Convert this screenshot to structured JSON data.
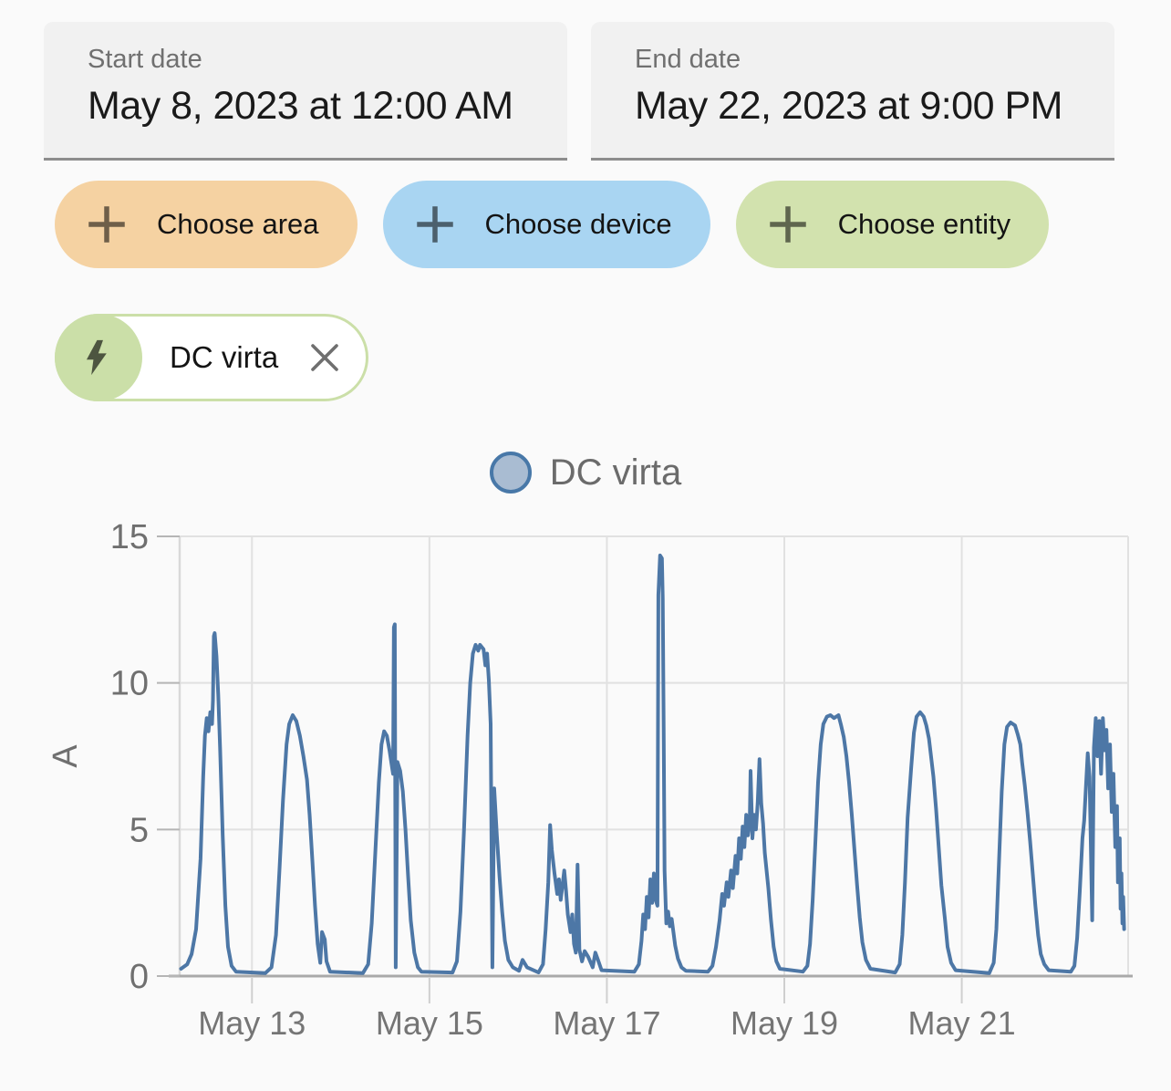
{
  "header": {
    "start_date": {
      "label": "Start date",
      "value": "May 8, 2023 at 12:00 AM"
    },
    "end_date": {
      "label": "End date",
      "value": "May 22, 2023 at 9:00 PM"
    }
  },
  "filters": {
    "choose_area": {
      "label": "Choose area",
      "color": "#f5d2a2",
      "icon": "plus-icon"
    },
    "choose_device": {
      "label": "Choose device",
      "color": "#a9d5f2",
      "icon": "plus-icon"
    },
    "choose_entity": {
      "label": "Choose entity",
      "color": "#d2e2ae",
      "icon": "plus-icon"
    }
  },
  "selected_entity": {
    "label": "DC virta",
    "accent_color": "#cbdfa8",
    "icon": "lightning-bolt-icon",
    "remove_icon": "close-icon"
  },
  "chart_data": {
    "type": "line",
    "title": "DC virta",
    "legend": [
      {
        "label": "DC virta",
        "marker_fill": "#a9bcd2",
        "marker_border": "#4878a8",
        "position": "top-center"
      }
    ],
    "ylabel": "A",
    "ylim": [
      0,
      15
    ],
    "yticks": [
      0,
      5,
      10,
      15
    ],
    "ytick_labels": [
      "0",
      "5",
      "10",
      "15"
    ],
    "x_unit": "day of May 2023 (fractional)",
    "xlim_days_may": [
      12.185,
      22.875
    ],
    "xtick_days_may": [
      13,
      15,
      17,
      19,
      21
    ],
    "xtick_labels": [
      "May 13",
      "May 15",
      "May 17",
      "May 19",
      "May 21"
    ],
    "grid": true,
    "line_color": "#4d77a6",
    "grid_color": "#e1e1e1",
    "axis_color": "#a9a9a9",
    "tick_label_color": "#6f6f6f",
    "series": [
      {
        "name": "DC virta",
        "unit": "A",
        "points": [
          [
            12.2,
            0.25
          ],
          [
            12.27,
            0.4
          ],
          [
            12.32,
            0.75
          ],
          [
            12.37,
            1.6
          ],
          [
            12.42,
            4.0
          ],
          [
            12.45,
            6.8
          ],
          [
            12.47,
            8.2
          ],
          [
            12.49,
            8.8
          ],
          [
            12.51,
            8.35
          ],
          [
            12.53,
            9.0
          ],
          [
            12.55,
            8.6
          ],
          [
            12.56,
            9.4
          ],
          [
            12.57,
            11.6
          ],
          [
            12.58,
            11.7
          ],
          [
            12.6,
            10.9
          ],
          [
            12.62,
            9.6
          ],
          [
            12.64,
            7.8
          ],
          [
            12.67,
            4.8
          ],
          [
            12.7,
            2.4
          ],
          [
            12.73,
            1.0
          ],
          [
            12.77,
            0.35
          ],
          [
            12.82,
            0.15
          ],
          [
            13.15,
            0.1
          ],
          [
            13.22,
            0.3
          ],
          [
            13.27,
            1.4
          ],
          [
            13.31,
            3.6
          ],
          [
            13.35,
            6.0
          ],
          [
            13.39,
            7.9
          ],
          [
            13.42,
            8.6
          ],
          [
            13.46,
            8.9
          ],
          [
            13.5,
            8.7
          ],
          [
            13.54,
            8.2
          ],
          [
            13.58,
            7.5
          ],
          [
            13.62,
            6.7
          ],
          [
            13.65,
            5.5
          ],
          [
            13.68,
            4.0
          ],
          [
            13.71,
            2.4
          ],
          [
            13.74,
            1.1
          ],
          [
            13.77,
            0.45
          ],
          [
            13.79,
            1.5
          ],
          [
            13.82,
            1.25
          ],
          [
            13.84,
            0.5
          ],
          [
            13.88,
            0.15
          ],
          [
            14.25,
            0.1
          ],
          [
            14.31,
            0.4
          ],
          [
            14.35,
            1.8
          ],
          [
            14.39,
            4.2
          ],
          [
            14.43,
            6.6
          ],
          [
            14.46,
            7.9
          ],
          [
            14.49,
            8.35
          ],
          [
            14.52,
            8.2
          ],
          [
            14.55,
            7.7
          ],
          [
            14.58,
            7.1
          ],
          [
            14.59,
            6.9
          ],
          [
            14.6,
            11.9
          ],
          [
            14.61,
            12.0
          ],
          [
            14.62,
            0.3
          ],
          [
            14.64,
            7.3
          ],
          [
            14.67,
            7.0
          ],
          [
            14.7,
            6.3
          ],
          [
            14.73,
            5.0
          ],
          [
            14.76,
            3.4
          ],
          [
            14.79,
            1.9
          ],
          [
            14.83,
            0.8
          ],
          [
            14.87,
            0.3
          ],
          [
            14.91,
            0.15
          ],
          [
            15.26,
            0.12
          ],
          [
            15.31,
            0.5
          ],
          [
            15.35,
            2.2
          ],
          [
            15.39,
            5.0
          ],
          [
            15.43,
            8.2
          ],
          [
            15.46,
            10.0
          ],
          [
            15.49,
            11.0
          ],
          [
            15.52,
            11.3
          ],
          [
            15.55,
            11.1
          ],
          [
            15.57,
            11.3
          ],
          [
            15.61,
            11.15
          ],
          [
            15.63,
            10.6
          ],
          [
            15.65,
            11.0
          ],
          [
            15.67,
            10.1
          ],
          [
            15.69,
            8.6
          ],
          [
            15.71,
            0.3
          ],
          [
            15.73,
            6.4
          ],
          [
            15.76,
            4.8
          ],
          [
            15.79,
            3.4
          ],
          [
            15.82,
            2.2
          ],
          [
            15.85,
            1.2
          ],
          [
            15.89,
            0.55
          ],
          [
            15.94,
            0.3
          ],
          [
            16.01,
            0.18
          ],
          [
            16.05,
            0.55
          ],
          [
            16.1,
            0.3
          ],
          [
            16.23,
            0.12
          ],
          [
            16.28,
            0.4
          ],
          [
            16.31,
            1.6
          ],
          [
            16.34,
            3.2
          ],
          [
            16.36,
            5.15
          ],
          [
            16.38,
            4.3
          ],
          [
            16.41,
            3.5
          ],
          [
            16.44,
            2.8
          ],
          [
            16.46,
            3.3
          ],
          [
            16.48,
            2.6
          ],
          [
            16.5,
            3.1
          ],
          [
            16.52,
            3.6
          ],
          [
            16.54,
            2.9
          ],
          [
            16.56,
            2.1
          ],
          [
            16.59,
            1.5
          ],
          [
            16.61,
            2.1
          ],
          [
            16.63,
            1.1
          ],
          [
            16.65,
            0.8
          ],
          [
            16.67,
            3.8
          ],
          [
            16.69,
            0.9
          ],
          [
            16.72,
            0.5
          ],
          [
            16.75,
            0.85
          ],
          [
            16.79,
            0.65
          ],
          [
            16.84,
            0.3
          ],
          [
            16.87,
            0.8
          ],
          [
            16.9,
            0.55
          ],
          [
            16.94,
            0.2
          ],
          [
            17.31,
            0.15
          ],
          [
            17.36,
            0.4
          ],
          [
            17.39,
            1.2
          ],
          [
            17.41,
            2.1
          ],
          [
            17.43,
            1.6
          ],
          [
            17.45,
            2.7
          ],
          [
            17.47,
            2.0
          ],
          [
            17.49,
            3.3
          ],
          [
            17.51,
            2.5
          ],
          [
            17.53,
            3.5
          ],
          [
            17.55,
            2.6
          ],
          [
            17.57,
            2.4
          ],
          [
            17.58,
            13.0
          ],
          [
            17.6,
            14.35
          ],
          [
            17.62,
            14.25
          ],
          [
            17.63,
            12.9
          ],
          [
            17.64,
            8.5
          ],
          [
            17.65,
            3.6
          ],
          [
            17.67,
            1.8
          ],
          [
            17.69,
            2.2
          ],
          [
            17.71,
            1.7
          ],
          [
            17.73,
            1.95
          ],
          [
            17.75,
            1.5
          ],
          [
            17.77,
            1.05
          ],
          [
            17.8,
            0.6
          ],
          [
            17.84,
            0.3
          ],
          [
            17.89,
            0.18
          ],
          [
            18.14,
            0.15
          ],
          [
            18.19,
            0.35
          ],
          [
            18.23,
            1.0
          ],
          [
            18.27,
            1.9
          ],
          [
            18.3,
            2.8
          ],
          [
            18.32,
            2.4
          ],
          [
            18.35,
            3.2
          ],
          [
            18.37,
            2.7
          ],
          [
            18.4,
            3.6
          ],
          [
            18.42,
            3.0
          ],
          [
            18.45,
            4.1
          ],
          [
            18.47,
            3.5
          ],
          [
            18.49,
            4.7
          ],
          [
            18.51,
            4.0
          ],
          [
            18.53,
            5.1
          ],
          [
            18.55,
            4.4
          ],
          [
            18.57,
            5.5
          ],
          [
            18.59,
            4.8
          ],
          [
            18.61,
            5.3
          ],
          [
            18.62,
            7.0
          ],
          [
            18.64,
            4.7
          ],
          [
            18.66,
            5.5
          ],
          [
            18.68,
            5.0
          ],
          [
            18.7,
            5.9
          ],
          [
            18.72,
            7.4
          ],
          [
            18.74,
            5.9
          ],
          [
            18.76,
            5.2
          ],
          [
            18.78,
            4.2
          ],
          [
            18.82,
            3.0
          ],
          [
            18.85,
            1.9
          ],
          [
            18.88,
            1.0
          ],
          [
            18.91,
            0.5
          ],
          [
            18.95,
            0.25
          ],
          [
            19.21,
            0.15
          ],
          [
            19.26,
            0.35
          ],
          [
            19.29,
            1.1
          ],
          [
            19.32,
            2.6
          ],
          [
            19.35,
            4.6
          ],
          [
            19.38,
            6.6
          ],
          [
            19.41,
            7.9
          ],
          [
            19.44,
            8.6
          ],
          [
            19.48,
            8.85
          ],
          [
            19.52,
            8.9
          ],
          [
            19.56,
            8.8
          ],
          [
            19.61,
            8.9
          ],
          [
            19.64,
            8.55
          ],
          [
            19.67,
            8.15
          ],
          [
            19.7,
            7.5
          ],
          [
            19.73,
            6.6
          ],
          [
            19.76,
            5.5
          ],
          [
            19.79,
            4.3
          ],
          [
            19.82,
            3.1
          ],
          [
            19.85,
            2.0
          ],
          [
            19.88,
            1.15
          ],
          [
            19.92,
            0.55
          ],
          [
            19.97,
            0.25
          ],
          [
            20.25,
            0.12
          ],
          [
            20.3,
            0.4
          ],
          [
            20.33,
            1.4
          ],
          [
            20.36,
            3.2
          ],
          [
            20.39,
            5.4
          ],
          [
            20.43,
            7.1
          ],
          [
            20.46,
            8.3
          ],
          [
            20.49,
            8.85
          ],
          [
            20.53,
            9.0
          ],
          [
            20.57,
            8.85
          ],
          [
            20.6,
            8.55
          ],
          [
            20.63,
            8.1
          ],
          [
            20.65,
            7.6
          ],
          [
            20.68,
            6.8
          ],
          [
            20.71,
            5.7
          ],
          [
            20.74,
            4.4
          ],
          [
            20.77,
            3.1
          ],
          [
            20.81,
            1.95
          ],
          [
            20.84,
            1.0
          ],
          [
            20.88,
            0.45
          ],
          [
            20.93,
            0.2
          ],
          [
            21.31,
            0.1
          ],
          [
            21.36,
            0.45
          ],
          [
            21.39,
            1.6
          ],
          [
            21.42,
            3.9
          ],
          [
            21.45,
            6.3
          ],
          [
            21.48,
            7.9
          ],
          [
            21.51,
            8.5
          ],
          [
            21.55,
            8.65
          ],
          [
            21.6,
            8.55
          ],
          [
            21.63,
            8.25
          ],
          [
            21.66,
            7.9
          ],
          [
            21.68,
            7.3
          ],
          [
            21.71,
            6.5
          ],
          [
            21.74,
            5.6
          ],
          [
            21.77,
            4.6
          ],
          [
            21.8,
            3.5
          ],
          [
            21.83,
            2.4
          ],
          [
            21.86,
            1.4
          ],
          [
            21.89,
            0.75
          ],
          [
            21.93,
            0.4
          ],
          [
            21.98,
            0.2
          ],
          [
            22.23,
            0.15
          ],
          [
            22.27,
            0.35
          ],
          [
            22.3,
            1.3
          ],
          [
            22.33,
            2.9
          ],
          [
            22.36,
            4.7
          ],
          [
            22.38,
            5.3
          ],
          [
            22.4,
            6.5
          ],
          [
            22.42,
            7.6
          ],
          [
            22.44,
            6.8
          ],
          [
            22.47,
            1.9
          ],
          [
            22.49,
            7.8
          ],
          [
            22.51,
            8.8
          ],
          [
            22.53,
            7.5
          ],
          [
            22.55,
            8.7
          ],
          [
            22.57,
            6.9
          ],
          [
            22.59,
            8.8
          ],
          [
            22.61,
            7.7
          ],
          [
            22.63,
            8.4
          ],
          [
            22.65,
            6.4
          ],
          [
            22.67,
            7.9
          ],
          [
            22.69,
            5.6
          ],
          [
            22.71,
            6.9
          ],
          [
            22.73,
            4.4
          ],
          [
            22.75,
            5.8
          ],
          [
            22.76,
            3.2
          ],
          [
            22.78,
            4.7
          ],
          [
            22.79,
            2.3
          ],
          [
            22.8,
            3.5
          ],
          [
            22.81,
            1.8
          ],
          [
            22.82,
            2.7
          ],
          [
            22.83,
            1.6
          ]
        ]
      }
    ]
  }
}
